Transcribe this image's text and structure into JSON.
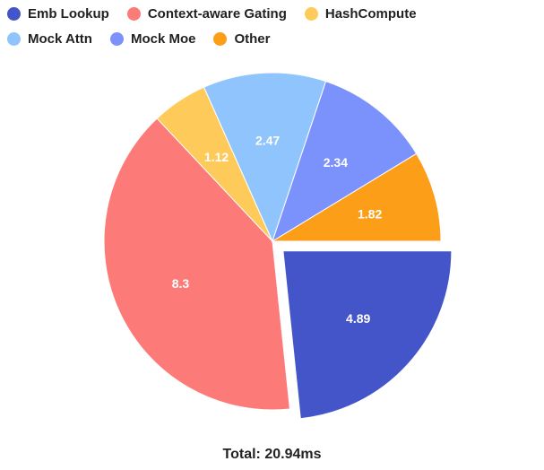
{
  "chart_data": {
    "type": "pie",
    "slices": [
      {
        "name": "Emb Lookup",
        "value": 4.89,
        "label": "4.89",
        "color": "#4355c8",
        "exploded": true
      },
      {
        "name": "Context-aware Gating",
        "value": 8.3,
        "label": "8.3",
        "color": "#fc7b78"
      },
      {
        "name": "HashCompute",
        "value": 1.12,
        "label": "1.12",
        "color": "#fecb5a"
      },
      {
        "name": "Mock Attn",
        "value": 2.47,
        "label": "2.47",
        "color": "#90c4fc"
      },
      {
        "name": "Mock Moe",
        "value": 2.34,
        "label": "2.34",
        "color": "#7b91fc"
      },
      {
        "name": "Other",
        "value": 1.82,
        "label": "1.82",
        "color": "#fd9e18"
      }
    ],
    "legend": {
      "placement": "top-left",
      "rows": [
        [
          {
            "label": "Emb Lookup",
            "color": "#4355c8"
          },
          {
            "label": "Context-aware Gating",
            "color": "#fc7b78"
          },
          {
            "label": "HashCompute",
            "color": "#fecb5a"
          }
        ],
        [
          {
            "label": "Mock Attn",
            "color": "#90c4fc"
          },
          {
            "label": "Mock Moe",
            "color": "#7b91fc"
          },
          {
            "label": "Other",
            "color": "#fd9e18"
          }
        ]
      ]
    },
    "total_text": "Total:  20.94ms"
  }
}
